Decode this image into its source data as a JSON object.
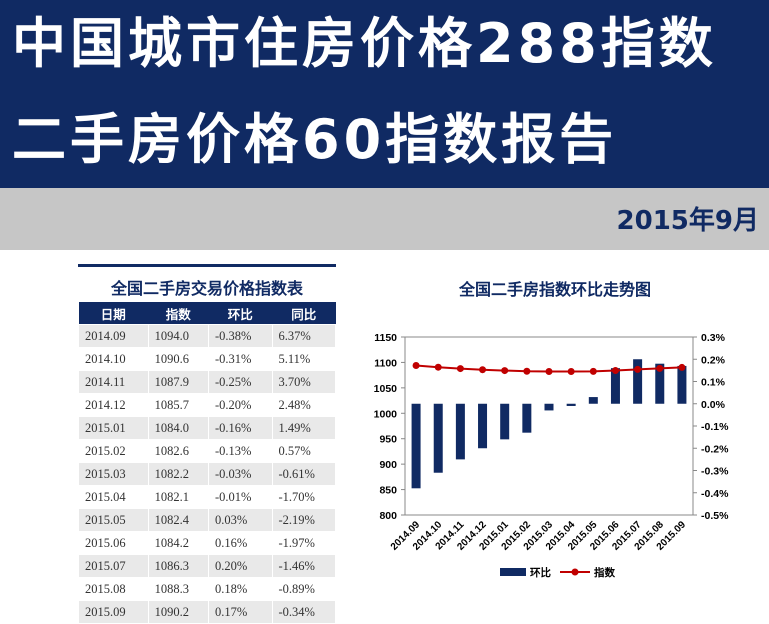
{
  "banner": {
    "line1": "中国城市住房价格288指数",
    "line2": "二手房价格60指数报告",
    "date": "2015年9月"
  },
  "table": {
    "title": "全国二手房交易价格指数表",
    "headers": [
      "日期",
      "指数",
      "环比",
      "同比"
    ],
    "rows": [
      [
        "2014.09",
        "1094.0",
        "-0.38%",
        "6.37%"
      ],
      [
        "2014.10",
        "1090.6",
        "-0.31%",
        "5.11%"
      ],
      [
        "2014.11",
        "1087.9",
        "-0.25%",
        "3.70%"
      ],
      [
        "2014.12",
        "1085.7",
        "-0.20%",
        "2.48%"
      ],
      [
        "2015.01",
        "1084.0",
        "-0.16%",
        "1.49%"
      ],
      [
        "2015.02",
        "1082.6",
        "-0.13%",
        "0.57%"
      ],
      [
        "2015.03",
        "1082.2",
        "-0.03%",
        "-0.61%"
      ],
      [
        "2015.04",
        "1082.1",
        "-0.01%",
        "-1.70%"
      ],
      [
        "2015.05",
        "1082.4",
        "0.03%",
        "-2.19%"
      ],
      [
        "2015.06",
        "1084.2",
        "0.16%",
        "-1.97%"
      ],
      [
        "2015.07",
        "1086.3",
        "0.20%",
        "-1.46%"
      ],
      [
        "2015.08",
        "1088.3",
        "0.18%",
        "-0.89%"
      ],
      [
        "2015.09",
        "1090.2",
        "0.17%",
        "-0.34%"
      ]
    ]
  },
  "chart_data": {
    "type": "bar",
    "title": "全国二手房指数环比走势图",
    "categories": [
      "2014.09",
      "2014.10",
      "2014.11",
      "2014.12",
      "2015.01",
      "2015.02",
      "2015.03",
      "2015.04",
      "2015.05",
      "2015.06",
      "2015.07",
      "2015.08",
      "2015.09"
    ],
    "series": [
      {
        "name": "环比",
        "type": "bar",
        "axis": "right",
        "color": "#102a63",
        "values": [
          -0.38,
          -0.31,
          -0.25,
          -0.2,
          -0.16,
          -0.13,
          -0.03,
          -0.01,
          0.03,
          0.16,
          0.2,
          0.18,
          0.17
        ]
      },
      {
        "name": "指数",
        "type": "line",
        "axis": "left",
        "color": "#c00000",
        "values": [
          1094.0,
          1090.6,
          1087.9,
          1085.7,
          1084.0,
          1082.6,
          1082.2,
          1082.1,
          1082.4,
          1084.2,
          1086.3,
          1088.3,
          1090.2
        ]
      }
    ],
    "ylim_left": [
      800,
      1150
    ],
    "yticks_left": [
      "800",
      "850",
      "900",
      "950",
      "1000",
      "1050",
      "1100",
      "1150"
    ],
    "ylim_right": [
      -0.5,
      0.3
    ],
    "yticks_right": [
      "-0.5%",
      "-0.4%",
      "-0.3%",
      "-0.2%",
      "-0.1%",
      "0.0%",
      "0.1%",
      "0.2%",
      "0.3%"
    ],
    "legend_position": "bottom",
    "grid": false
  }
}
